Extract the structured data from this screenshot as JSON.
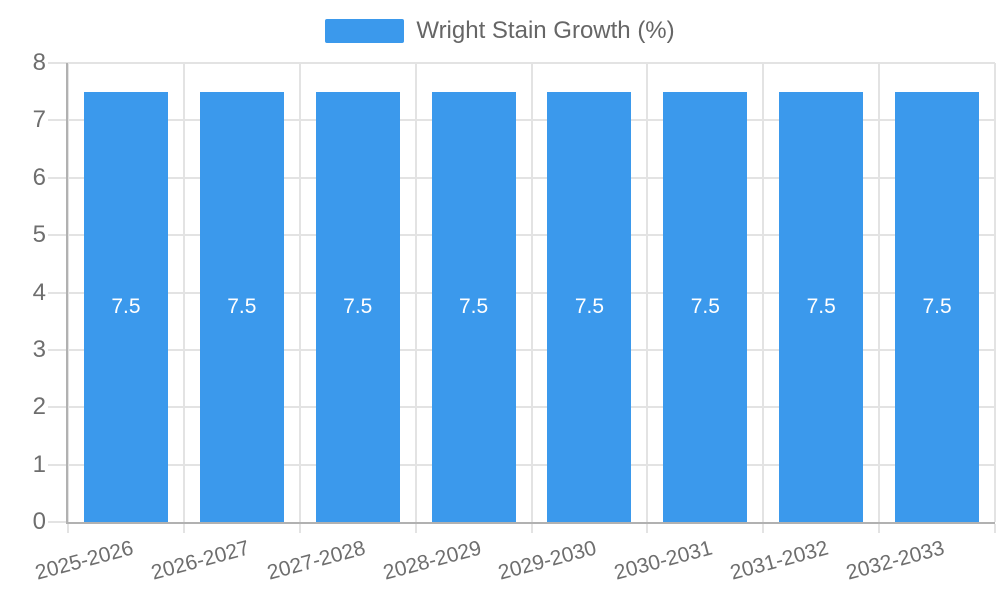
{
  "legend": {
    "label": "Wright Stain Growth (%)"
  },
  "chart_data": {
    "type": "bar",
    "title": "",
    "xlabel": "",
    "ylabel": "",
    "categories": [
      "2025-2026",
      "2026-2027",
      "2027-2028",
      "2028-2029",
      "2029-2030",
      "2030-2031",
      "2031-2032",
      "2032-2033"
    ],
    "series": [
      {
        "name": "Wright Stain Growth (%)",
        "values": [
          7.5,
          7.5,
          7.5,
          7.5,
          7.5,
          7.5,
          7.5,
          7.5
        ]
      }
    ],
    "bar_value_labels": [
      "7.5",
      "7.5",
      "7.5",
      "7.5",
      "7.5",
      "7.5",
      "7.5",
      "7.5"
    ],
    "ylim": [
      0,
      8
    ],
    "yticks": [
      0,
      1,
      2,
      3,
      4,
      5,
      6,
      7,
      8
    ],
    "grid": true,
    "legend_position": "top",
    "colors": {
      "bar": "#3b99ec",
      "bar_label_text": "#ffffff",
      "axis_line": "#b1b1b1",
      "grid_line": "#e3e3e3",
      "tick_text": "#6e6e6e",
      "legend_text": "#666666",
      "background": "#ffffff"
    }
  }
}
